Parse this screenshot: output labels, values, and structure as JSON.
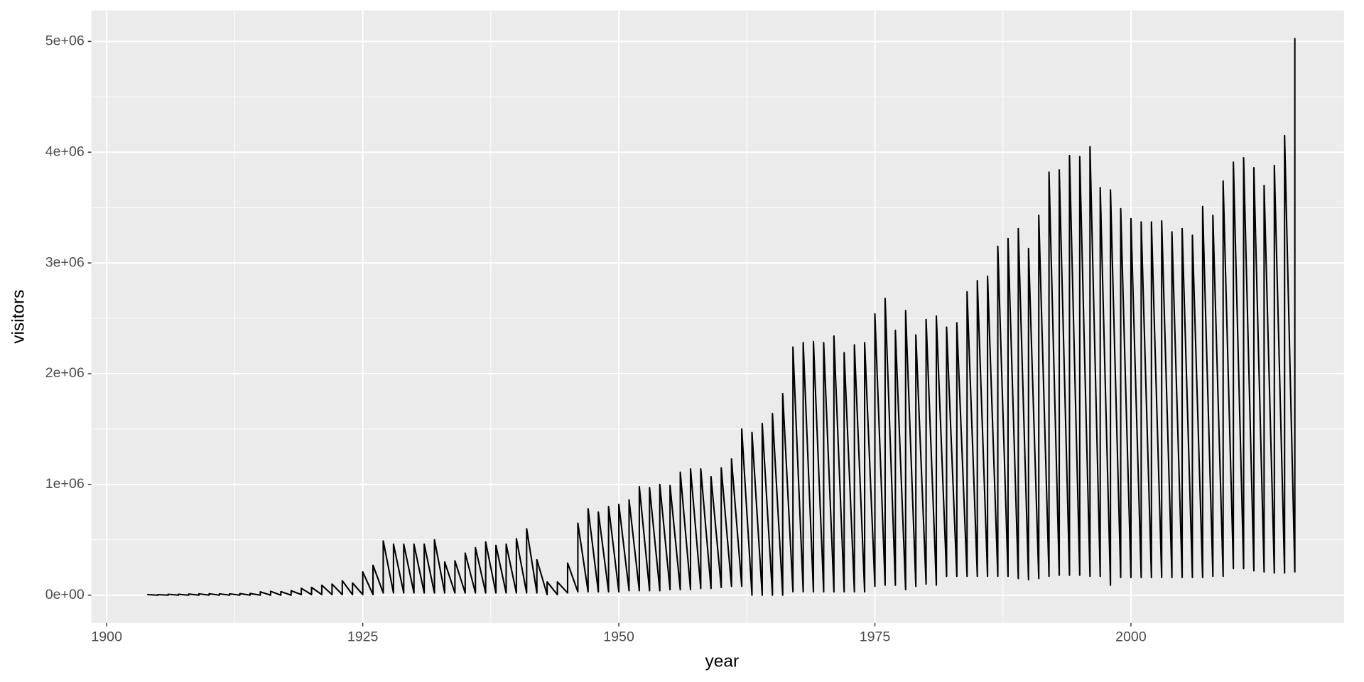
{
  "chart_data": {
    "type": "line",
    "x_label": "year",
    "y_label": "visitors",
    "xlim": [
      1898.5,
      2020.8
    ],
    "ylim": [
      -250000,
      5280000
    ],
    "xticks": [
      1900,
      1925,
      1950,
      1975,
      2000
    ],
    "yticks": [
      {
        "value": 0,
        "label": "0e+00"
      },
      {
        "value": 1000000,
        "label": "1e+06"
      },
      {
        "value": 2000000,
        "label": "2e+06"
      },
      {
        "value": 3000000,
        "label": "3e+06"
      },
      {
        "value": 4000000,
        "label": "4e+06"
      },
      {
        "value": 5000000,
        "label": "5e+06"
      }
    ],
    "grid": true,
    "x": [
      1904,
      1904,
      1905,
      1905,
      1906,
      1906,
      1907,
      1907,
      1908,
      1908,
      1909,
      1909,
      1910,
      1910,
      1911,
      1911,
      1912,
      1912,
      1913,
      1913,
      1914,
      1914,
      1915,
      1915,
      1916,
      1916,
      1917,
      1917,
      1918,
      1918,
      1919,
      1919,
      1920,
      1920,
      1921,
      1921,
      1922,
      1922,
      1923,
      1923,
      1924,
      1924,
      1925,
      1925,
      1926,
      1926,
      1927,
      1927,
      1928,
      1928,
      1929,
      1929,
      1930,
      1930,
      1931,
      1931,
      1932,
      1932,
      1933,
      1933,
      1934,
      1934,
      1935,
      1935,
      1936,
      1936,
      1937,
      1937,
      1938,
      1938,
      1939,
      1939,
      1940,
      1940,
      1941,
      1941,
      1942,
      1942,
      1943,
      1943,
      1944,
      1944,
      1945,
      1945,
      1946,
      1946,
      1947,
      1947,
      1948,
      1948,
      1949,
      1949,
      1950,
      1950,
      1951,
      1951,
      1952,
      1952,
      1953,
      1953,
      1954,
      1954,
      1955,
      1955,
      1956,
      1956,
      1957,
      1957,
      1958,
      1958,
      1959,
      1959,
      1960,
      1960,
      1961,
      1961,
      1962,
      1962,
      1963,
      1963,
      1964,
      1964,
      1965,
      1965,
      1966,
      1966,
      1967,
      1967,
      1968,
      1968,
      1969,
      1969,
      1970,
      1970,
      1971,
      1971,
      1972,
      1972,
      1973,
      1973,
      1974,
      1974,
      1975,
      1975,
      1976,
      1976,
      1977,
      1977,
      1978,
      1978,
      1979,
      1979,
      1980,
      1980,
      1981,
      1981,
      1982,
      1982,
      1983,
      1983,
      1984,
      1984,
      1985,
      1985,
      1986,
      1986,
      1987,
      1987,
      1988,
      1988,
      1989,
      1989,
      1990,
      1990,
      1991,
      1991,
      1992,
      1992,
      1993,
      1993,
      1994,
      1994,
      1995,
      1995,
      1996,
      1996,
      1997,
      1997,
      1998,
      1998,
      1999,
      1999,
      2000,
      2000,
      2001,
      2001,
      2002,
      2002,
      2003,
      2003,
      2004,
      2004,
      2005,
      2005,
      2006,
      2006,
      2007,
      2007,
      2008,
      2008,
      2009,
      2009,
      2010,
      2010,
      2011,
      2011,
      2012,
      2012,
      2013,
      2013,
      2014,
      2014,
      2015,
      2015,
      2016,
      2016
    ],
    "series": [
      {
        "color": "#000000",
        "values": [
          0,
          5000,
          0,
          5000,
          0,
          8000,
          0,
          8000,
          0,
          10000,
          0,
          12000,
          0,
          13000,
          0,
          12000,
          0,
          12000,
          0,
          14000,
          0,
          15000,
          0,
          30000,
          0,
          35000,
          0,
          32000,
          0,
          40000,
          5000,
          62000,
          5000,
          70000,
          5000,
          90000,
          5000,
          100000,
          5000,
          130000,
          5000,
          110000,
          5000,
          210000,
          5000,
          270000,
          20000,
          490000,
          20000,
          460000,
          20000,
          460000,
          20000,
          460000,
          20000,
          460000,
          20000,
          500000,
          20000,
          300000,
          20000,
          310000,
          20000,
          380000,
          20000,
          430000,
          20000,
          480000,
          20000,
          450000,
          20000,
          460000,
          20000,
          510000,
          20000,
          600000,
          20000,
          320000,
          5000,
          120000,
          5000,
          120000,
          20000,
          290000,
          30000,
          650000,
          30000,
          780000,
          30000,
          750000,
          30000,
          800000,
          30000,
          820000,
          40000,
          860000,
          40000,
          980000,
          40000,
          970000,
          40000,
          1000000,
          50000,
          990000,
          50000,
          1110000,
          50000,
          1140000,
          60000,
          1140000,
          60000,
          1070000,
          70000,
          1150000,
          80000,
          1230000,
          80000,
          1500000,
          0,
          1470000,
          0,
          1550000,
          0,
          1640000,
          0,
          1820000,
          30000,
          2240000,
          30000,
          2280000,
          30000,
          2290000,
          30000,
          2280000,
          30000,
          2340000,
          30000,
          2190000,
          30000,
          2260000,
          30000,
          2280000,
          80000,
          2540000,
          90000,
          2680000,
          90000,
          2390000,
          50000,
          2570000,
          80000,
          2350000,
          100000,
          2490000,
          90000,
          2520000,
          170000,
          2420000,
          170000,
          2460000,
          170000,
          2740000,
          170000,
          2840000,
          170000,
          2880000,
          170000,
          3150000,
          170000,
          3220000,
          150000,
          3310000,
          140000,
          3130000,
          150000,
          3430000,
          170000,
          3820000,
          180000,
          3840000,
          180000,
          3970000,
          180000,
          3960000,
          170000,
          4050000,
          170000,
          3680000,
          90000,
          3660000,
          160000,
          3490000,
          160000,
          3400000,
          160000,
          3370000,
          160000,
          3370000,
          160000,
          3380000,
          160000,
          3280000,
          160000,
          3310000,
          160000,
          3250000,
          160000,
          3510000,
          170000,
          3430000,
          170000,
          3740000,
          240000,
          3910000,
          240000,
          3950000,
          220000,
          3860000,
          210000,
          3700000,
          200000,
          3880000,
          200000,
          4150000,
          210000,
          5030000
        ]
      }
    ]
  }
}
